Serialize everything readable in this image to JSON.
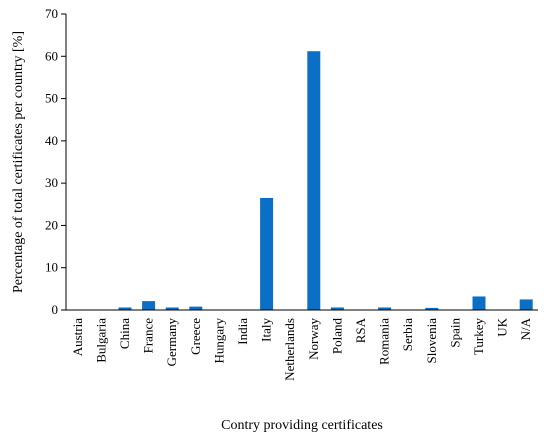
{
  "chart_data": {
    "type": "bar",
    "xlabel": "Contry providing certificates",
    "ylabel": "Percentage of total certificates per country [%]",
    "ylim": [
      0,
      70
    ],
    "yticks": [
      0,
      10,
      20,
      30,
      40,
      50,
      60,
      70
    ],
    "grid": false,
    "legend": "none",
    "bar_color": "#0b6fc6",
    "categories": [
      "Austria",
      "Bulgaria",
      "China",
      "France",
      "Germany",
      "Greece",
      "Hungary",
      "India",
      "Italy",
      "Netherlands",
      "Norway",
      "Poland",
      "RSA",
      "Romania",
      "Serbia",
      "Slovenia",
      "Spain",
      "Turkey",
      "UK",
      "N/A"
    ],
    "values": [
      0,
      0,
      0.6,
      2.1,
      0.6,
      0.8,
      0,
      0,
      26.5,
      0,
      61.2,
      0.6,
      0,
      0.6,
      0,
      0.5,
      0,
      3.2,
      0,
      2.5
    ]
  }
}
